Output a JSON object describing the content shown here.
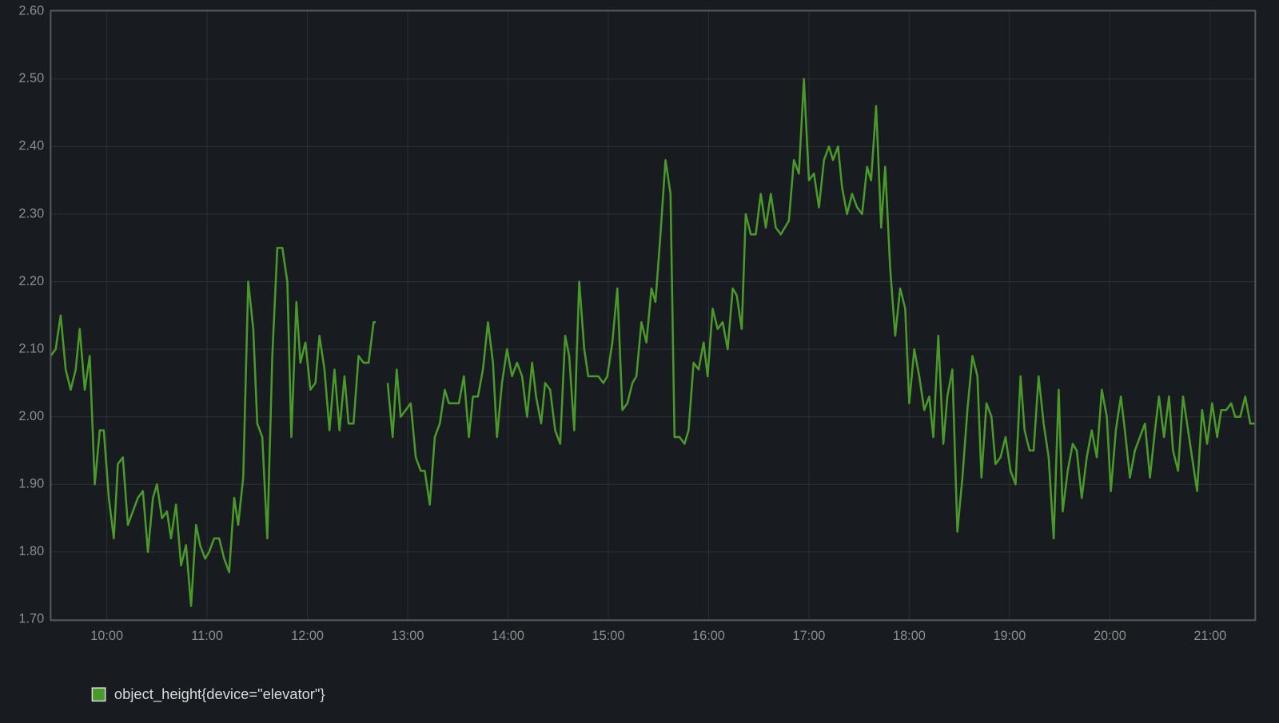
{
  "chart_data": {
    "type": "line",
    "x": [
      9.44,
      9.49,
      9.54,
      9.59,
      9.64,
      9.69,
      9.73,
      9.78,
      9.83,
      9.88,
      9.93,
      9.97,
      10.02,
      10.07,
      10.11,
      10.16,
      10.21,
      10.26,
      10.31,
      10.36,
      10.41,
      10.46,
      10.5,
      10.55,
      10.6,
      10.64,
      10.69,
      10.74,
      10.79,
      10.84,
      10.89,
      10.93,
      10.98,
      11.02,
      11.07,
      11.12,
      11.17,
      11.22,
      11.27,
      11.31,
      11.36,
      11.41,
      11.46,
      11.5,
      11.55,
      11.6,
      11.65,
      11.7,
      11.75,
      11.8,
      11.84,
      11.89,
      11.93,
      11.98,
      12.03,
      12.08,
      12.12,
      12.17,
      12.22,
      12.27,
      12.32,
      12.37,
      12.41,
      12.46,
      12.51,
      12.56,
      12.61,
      12.66,
      12.68,
      12.74,
      12.8,
      12.85,
      12.89,
      12.93,
      12.98,
      13.03,
      13.08,
      13.13,
      13.17,
      13.22,
      13.27,
      13.32,
      13.37,
      13.41,
      13.46,
      13.51,
      13.56,
      13.61,
      13.65,
      13.7,
      13.75,
      13.8,
      13.85,
      13.89,
      13.94,
      13.99,
      14.04,
      14.09,
      14.14,
      14.19,
      14.24,
      14.28,
      14.33,
      14.37,
      14.42,
      14.47,
      14.52,
      14.57,
      14.61,
      14.66,
      14.71,
      14.76,
      14.8,
      14.85,
      14.9,
      14.95,
      14.99,
      15.04,
      15.09,
      15.14,
      15.19,
      15.24,
      15.28,
      15.33,
      15.38,
      15.43,
      15.47,
      15.52,
      15.57,
      15.62,
      15.66,
      15.71,
      15.76,
      15.8,
      15.85,
      15.9,
      15.95,
      15.99,
      16.04,
      16.09,
      16.14,
      16.19,
      16.24,
      16.28,
      16.33,
      16.37,
      16.42,
      16.47,
      16.52,
      16.57,
      16.62,
      16.67,
      16.72,
      16.76,
      16.8,
      16.85,
      16.9,
      16.95,
      17.0,
      17.05,
      17.1,
      17.15,
      17.2,
      17.24,
      17.29,
      17.33,
      17.38,
      17.43,
      17.48,
      17.53,
      17.58,
      17.62,
      17.67,
      17.72,
      17.76,
      17.81,
      17.86,
      17.91,
      17.96,
      18.0,
      18.05,
      18.1,
      18.15,
      18.2,
      18.24,
      18.29,
      18.34,
      18.38,
      18.43,
      18.48,
      18.53,
      18.58,
      18.63,
      18.68,
      18.72,
      18.77,
      18.82,
      18.86,
      18.91,
      18.96,
      19.01,
      19.06,
      19.11,
      19.15,
      19.2,
      19.24,
      19.29,
      19.34,
      19.39,
      19.44,
      19.49,
      19.53,
      19.58,
      19.63,
      19.67,
      19.72,
      19.77,
      19.82,
      19.87,
      19.92,
      19.97,
      20.01,
      20.06,
      20.11,
      20.15,
      20.2,
      20.25,
      20.3,
      20.35,
      20.4,
      20.45,
      20.49,
      20.54,
      20.59,
      20.63,
      20.68,
      20.73,
      20.78,
      20.83,
      20.87,
      20.92,
      20.97,
      21.02,
      21.07,
      21.11,
      21.16,
      21.21,
      21.25,
      21.3,
      21.35,
      21.4,
      21.45
    ],
    "series": [
      {
        "name": "object_height{device=\"elevator\"}",
        "color": "#4a9a2a",
        "values": [
          2.09,
          2.1,
          2.15,
          2.07,
          2.04,
          2.07,
          2.13,
          2.04,
          2.09,
          1.9,
          1.98,
          1.98,
          1.88,
          1.82,
          1.93,
          1.94,
          1.84,
          1.86,
          1.88,
          1.89,
          1.8,
          1.88,
          1.9,
          1.85,
          1.86,
          1.82,
          1.87,
          1.78,
          1.81,
          1.72,
          1.84,
          1.81,
          1.79,
          1.8,
          1.82,
          1.82,
          1.79,
          1.77,
          1.88,
          1.84,
          1.91,
          2.2,
          2.13,
          1.99,
          1.97,
          1.82,
          2.09,
          2.25,
          2.25,
          2.2,
          1.97,
          2.17,
          2.08,
          2.11,
          2.04,
          2.05,
          2.12,
          2.07,
          1.98,
          2.07,
          1.98,
          2.06,
          1.99,
          1.99,
          2.09,
          2.08,
          2.08,
          2.14,
          2.14,
          null,
          2.05,
          1.97,
          2.07,
          2.0,
          2.01,
          2.02,
          1.94,
          1.92,
          1.92,
          1.87,
          1.97,
          1.99,
          2.04,
          2.02,
          2.02,
          2.02,
          2.06,
          1.97,
          2.03,
          2.03,
          2.07,
          2.14,
          2.08,
          1.97,
          2.05,
          2.1,
          2.06,
          2.08,
          2.06,
          2.0,
          2.08,
          2.03,
          1.99,
          2.05,
          2.04,
          1.98,
          1.96,
          2.12,
          2.09,
          1.98,
          2.2,
          2.1,
          2.06,
          2.06,
          2.06,
          2.05,
          2.06,
          2.11,
          2.19,
          2.01,
          2.02,
          2.05,
          2.06,
          2.14,
          2.11,
          2.19,
          2.17,
          2.27,
          2.38,
          2.33,
          1.97,
          1.97,
          1.96,
          1.98,
          2.08,
          2.07,
          2.11,
          2.06,
          2.16,
          2.13,
          2.14,
          2.1,
          2.19,
          2.18,
          2.13,
          2.3,
          2.27,
          2.27,
          2.33,
          2.28,
          2.33,
          2.28,
          2.27,
          2.28,
          2.29,
          2.38,
          2.36,
          2.5,
          2.35,
          2.36,
          2.31,
          2.38,
          2.4,
          2.38,
          2.4,
          2.34,
          2.3,
          2.33,
          2.31,
          2.3,
          2.37,
          2.35,
          2.46,
          2.28,
          2.37,
          2.22,
          2.12,
          2.19,
          2.16,
          2.02,
          2.1,
          2.06,
          2.01,
          2.03,
          1.97,
          2.12,
          1.96,
          2.03,
          2.07,
          1.83,
          1.91,
          2.01,
          2.09,
          2.06,
          1.91,
          2.02,
          2.0,
          1.93,
          1.94,
          1.97,
          1.92,
          1.9,
          2.06,
          1.98,
          1.95,
          1.95,
          2.06,
          1.99,
          1.94,
          1.82,
          2.04,
          1.86,
          1.92,
          1.96,
          1.95,
          1.88,
          1.94,
          1.98,
          1.94,
          2.04,
          2.0,
          1.89,
          1.98,
          2.03,
          1.98,
          1.91,
          1.95,
          1.97,
          1.99,
          1.91,
          1.98,
          2.03,
          1.97,
          2.03,
          1.95,
          1.92,
          2.03,
          1.98,
          1.93,
          1.89,
          2.01,
          1.96,
          2.02,
          1.97,
          2.01,
          2.01,
          2.02,
          2.0,
          2.0,
          2.03,
          1.99,
          1.99
        ]
      }
    ],
    "xlim": [
      9.44,
      21.45
    ],
    "ylim": [
      1.7,
      2.6
    ],
    "xticks": [
      {
        "value": 10,
        "label": "10:00"
      },
      {
        "value": 11,
        "label": "11:00"
      },
      {
        "value": 12,
        "label": "12:00"
      },
      {
        "value": 13,
        "label": "13:00"
      },
      {
        "value": 14,
        "label": "14:00"
      },
      {
        "value": 15,
        "label": "15:00"
      },
      {
        "value": 16,
        "label": "16:00"
      },
      {
        "value": 17,
        "label": "17:00"
      },
      {
        "value": 18,
        "label": "18:00"
      },
      {
        "value": 19,
        "label": "19:00"
      },
      {
        "value": 20,
        "label": "20:00"
      },
      {
        "value": 21,
        "label": "21:00"
      }
    ],
    "yticks": [
      {
        "value": 1.7,
        "label": "1.70"
      },
      {
        "value": 1.8,
        "label": "1.80"
      },
      {
        "value": 1.9,
        "label": "1.90"
      },
      {
        "value": 2.0,
        "label": "2.00"
      },
      {
        "value": 2.1,
        "label": "2.10"
      },
      {
        "value": 2.2,
        "label": "2.20"
      },
      {
        "value": 2.3,
        "label": "2.30"
      },
      {
        "value": 2.4,
        "label": "2.40"
      },
      {
        "value": 2.5,
        "label": "2.50"
      },
      {
        "value": 2.6,
        "label": "2.60"
      }
    ],
    "grid": true,
    "legend": "bottom-left"
  }
}
